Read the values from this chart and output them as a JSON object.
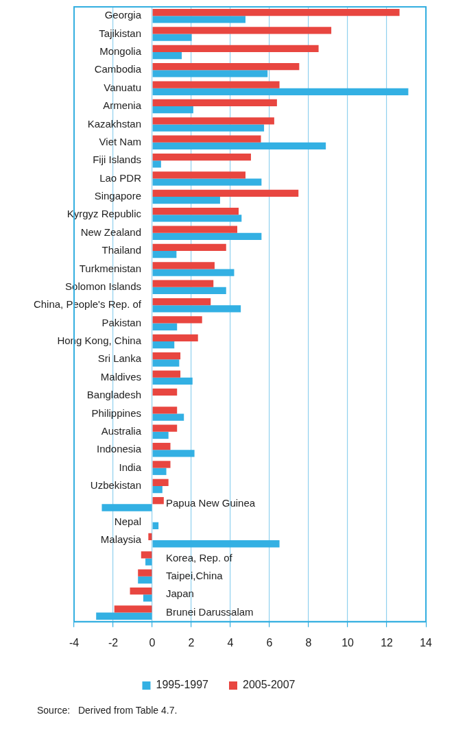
{
  "chart_data": {
    "type": "bar",
    "orientation": "horizontal",
    "categories": [
      "Georgia",
      "Tajikistan",
      "Mongolia",
      "Cambodia",
      "Vanuatu",
      "Armenia",
      "Kazakhstan",
      "Viet Nam",
      "Fiji Islands",
      "Lao PDR",
      "Singapore",
      "Kyrgyz Republic",
      "New Zealand",
      "Thailand",
      "Turkmenistan",
      "Solomon Islands",
      "China, People's Rep. of",
      "Pakistan",
      "Hong Kong, China",
      "Sri Lanka",
      "Maldives",
      "Bangladesh",
      "Philippines",
      "Australia",
      "Indonesia",
      "India",
      "Uzbekistan",
      "Papua New Guinea",
      "Nepal",
      "Malaysia",
      "Korea, Rep. of",
      "Taipei,China",
      "Japan",
      "Brunei Darussalam"
    ],
    "series": [
      {
        "name": "1995-1997",
        "color": "#33b0e3",
        "values": [
          4.77,
          2.02,
          1.51,
          5.9,
          13.1,
          2.1,
          5.72,
          8.88,
          0.45,
          5.59,
          3.47,
          4.57,
          5.59,
          1.24,
          4.19,
          3.78,
          4.53,
          1.27,
          1.13,
          1.38,
          2.06,
          0,
          1.62,
          0.83,
          2.16,
          0.72,
          0.52,
          -2.58,
          0.32,
          6.51,
          -0.35,
          -0.73,
          -0.46,
          -2.87
        ]
      },
      {
        "name": "2005-2007",
        "color": "#e84640",
        "values": [
          12.65,
          9.16,
          8.51,
          7.52,
          6.51,
          6.38,
          6.24,
          5.56,
          5.05,
          4.77,
          7.48,
          4.42,
          4.35,
          3.78,
          3.19,
          3.13,
          2.99,
          2.55,
          2.34,
          1.44,
          1.44,
          1.27,
          1.27,
          1.27,
          0.93,
          0.93,
          0.83,
          0.59,
          0,
          -0.2,
          -0.57,
          -0.73,
          -1.14,
          -1.94
        ]
      }
    ],
    "xlim": [
      -4,
      14
    ],
    "xticks": [
      -4,
      -2,
      0,
      2,
      4,
      6,
      8,
      10,
      12,
      14
    ],
    "grid": "x",
    "legend": "bottom",
    "annotations": [
      "Source:   Derived from Table 4.7."
    ]
  }
}
